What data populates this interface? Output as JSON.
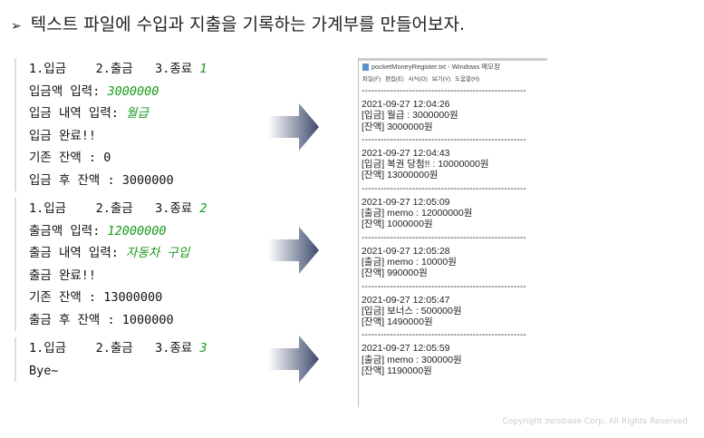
{
  "title": "텍스트 파일에 수입과 지출을 기록하는 가계부를 만들어보자.",
  "bullet": "➢",
  "consoles": [
    {
      "lines": [
        {
          "text": "1.입금    2.출금   3.종료 ",
          "input": "1"
        },
        {
          "text": "입금액 입력: ",
          "input": "3000000"
        },
        {
          "text": "입금 내역 입력: ",
          "input": "월급"
        },
        {
          "text": "입금 완료!!",
          "input": ""
        },
        {
          "text": "기존 잔액 : 0",
          "input": ""
        },
        {
          "text": "입금 후 잔액 : 3000000",
          "input": ""
        }
      ]
    },
    {
      "lines": [
        {
          "text": "1.입금    2.출금   3.종료 ",
          "input": "2"
        },
        {
          "text": "출금액 입력: ",
          "input": "12000000"
        },
        {
          "text": "출금 내역 입력: ",
          "input": "자동차 구입"
        },
        {
          "text": "출금 완료!!",
          "input": ""
        },
        {
          "text": "기존 잔액 : 13000000",
          "input": ""
        },
        {
          "text": "출금 후 잔액 : 1000000",
          "input": ""
        }
      ]
    },
    {
      "lines": [
        {
          "text": "1.입금    2.출금   3.종료 ",
          "input": "3"
        },
        {
          "text": "Bye~",
          "input": ""
        }
      ]
    }
  ],
  "notepad": {
    "window_title": "pocketMoneyRegister.txt - Windows 메모장",
    "menu": [
      "파일(F)",
      "편집(E)",
      "서식(O)",
      "보기(V)",
      "도움말(H)"
    ],
    "separator": "----------------------------------------------------",
    "entries": [
      [
        "2021-09-27 12:04:26",
        "[입금] 월급 : 3000000원",
        "[잔액] 3000000원"
      ],
      [
        "2021-09-27 12:04:43",
        "[입금] 복권 당첨!! : 10000000원",
        "[잔액] 13000000원"
      ],
      [
        "2021-09-27 12:05:09",
        "[출금] memo : 12000000원",
        "[잔액] 1000000원"
      ],
      [
        "2021-09-27 12:05:28",
        "[출금] memo : 10000원",
        "[잔액] 990000원"
      ],
      [
        "2021-09-27 12:05:47",
        "[입금] 보너스 : 500000원",
        "[잔액] 1490000원"
      ],
      [
        "2021-09-27 12:05:59",
        "[출금] memo : 300000원",
        "[잔액] 1190000원"
      ]
    ]
  },
  "copyright": "Copyright zerobase Corp. All Rights Reserved",
  "colors": {
    "input": "#1a9a1a",
    "arrow": "#4a5a80"
  }
}
